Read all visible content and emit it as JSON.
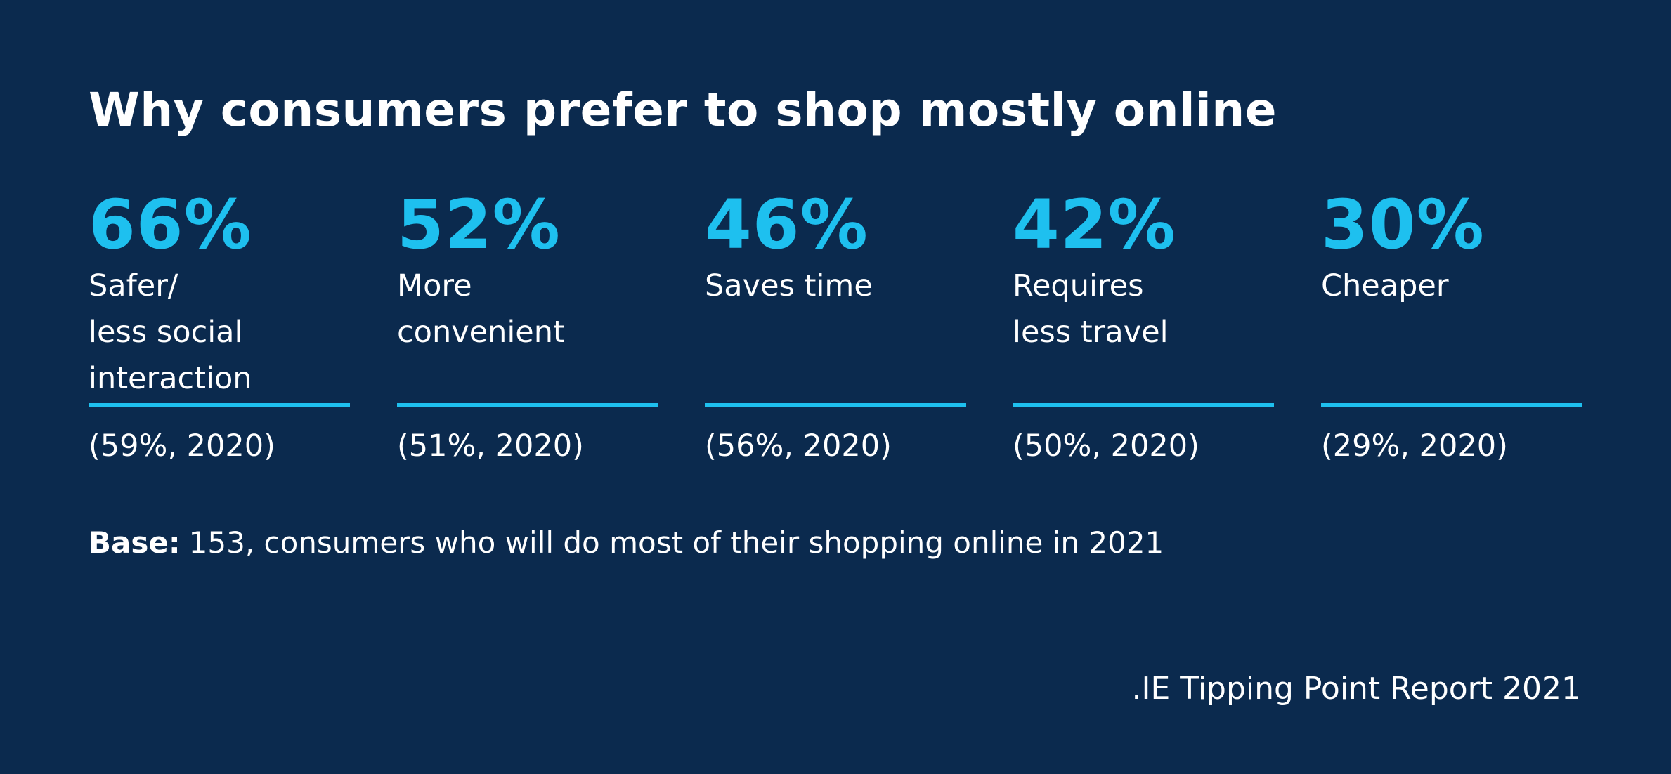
{
  "background_color": "#0b2a4e",
  "accent_color": "#1ec0ef",
  "chart_data": {
    "type": "table",
    "title": "Why consumers prefer to shop mostly online",
    "categories": [
      "Safer/\nless social\ninteraction",
      "More\nconvenient",
      "Saves time",
      "Requires\nless travel",
      "Cheaper"
    ],
    "series": [
      {
        "name": "2021",
        "values": [
          66,
          52,
          46,
          42,
          30
        ]
      },
      {
        "name": "2020",
        "values": [
          59,
          51,
          56,
          50,
          29
        ]
      }
    ],
    "stats": [
      {
        "value": "66%",
        "label": "Safer/\nless social\ninteraction",
        "previous": "(59%, 2020)"
      },
      {
        "value": "52%",
        "label": "More\nconvenient",
        "previous": "(51%, 2020)"
      },
      {
        "value": "46%",
        "label": "Saves time",
        "previous": "(56%, 2020)"
      },
      {
        "value": "42%",
        "label": "Requires\nless travel",
        "previous": "(50%, 2020)"
      },
      {
        "value": "30%",
        "label": "Cheaper",
        "previous": "(29%, 2020)"
      }
    ],
    "base_label": "Base:",
    "base_text": "153, consumers who will do most of their shopping online in 2021",
    "source": ".IE Tipping Point Report 2021"
  }
}
